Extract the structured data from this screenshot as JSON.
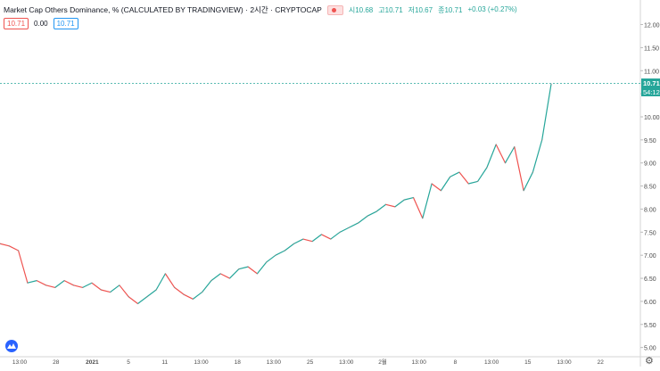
{
  "legend": {
    "title": "Market Cap Others Dominance, % (CALCULATED BY TRADINGVIEW) · 2시간 · CRYPTOCAP",
    "open_label": "시",
    "open": "10.68",
    "high_label": "고",
    "high": "10.71",
    "low_label": "저",
    "low": "10.67",
    "close_label": "종",
    "close": "10.71",
    "change": "+0.03 (+0.27%)"
  },
  "indicator_row": {
    "v1": "10.71",
    "v2": "0.00",
    "v3": "10.71"
  },
  "price_axis": {
    "ticks": [
      "12.00",
      "11.50",
      "11.00",
      "10.50",
      "10.00",
      "9.50",
      "9.00",
      "8.50",
      "8.00",
      "7.50",
      "7.00",
      "6.50",
      "6.00",
      "5.50",
      "5.00"
    ],
    "last_price": "10.71",
    "countdown": "54:12"
  },
  "time_axis": {
    "ticks": [
      "13:00",
      "28",
      "2021",
      "5",
      "11",
      "13:00",
      "18",
      "13:00",
      "25",
      "13:00",
      "2월",
      "13:00",
      "8",
      "13:00",
      "15",
      "13:00",
      "22"
    ]
  },
  "colors": {
    "up": "#26a69a",
    "down": "#ef5350",
    "last_line": "#26a69a",
    "accent": "#2962ff"
  },
  "chart_data": {
    "type": "line",
    "ylim": [
      4.8,
      12.3
    ],
    "x": [
      0,
      3,
      6,
      9,
      12,
      15,
      18,
      21,
      24,
      27,
      30,
      33,
      36,
      39,
      42,
      45,
      48,
      51,
      54,
      57,
      60,
      63,
      66,
      69,
      72,
      75,
      78,
      81,
      84,
      87,
      90,
      93,
      96,
      99,
      102,
      105,
      108,
      111,
      114,
      117,
      120,
      123,
      126,
      129,
      132,
      135,
      138,
      141,
      144,
      147,
      150,
      153,
      156,
      159,
      162,
      165,
      168,
      171,
      174,
      177,
      180
    ],
    "values": [
      7.25,
      7.2,
      7.1,
      6.4,
      6.45,
      6.35,
      6.3,
      6.45,
      6.35,
      6.3,
      6.4,
      6.25,
      6.2,
      6.35,
      6.1,
      5.95,
      6.1,
      6.25,
      6.6,
      6.3,
      6.15,
      6.05,
      6.2,
      6.45,
      6.6,
      6.5,
      6.7,
      6.75,
      6.6,
      6.85,
      7.0,
      7.1,
      7.25,
      7.35,
      7.3,
      7.45,
      7.35,
      7.5,
      7.6,
      7.7,
      7.85,
      7.95,
      8.1,
      8.05,
      8.2,
      8.25,
      7.8,
      8.55,
      8.4,
      8.7,
      8.8,
      8.55,
      8.6,
      8.9,
      9.4,
      9.0,
      9.35,
      8.4,
      8.8,
      9.5,
      10.71
    ]
  },
  "settings_icon": "gear-icon",
  "logo_icon": "tradingview-logo-icon"
}
